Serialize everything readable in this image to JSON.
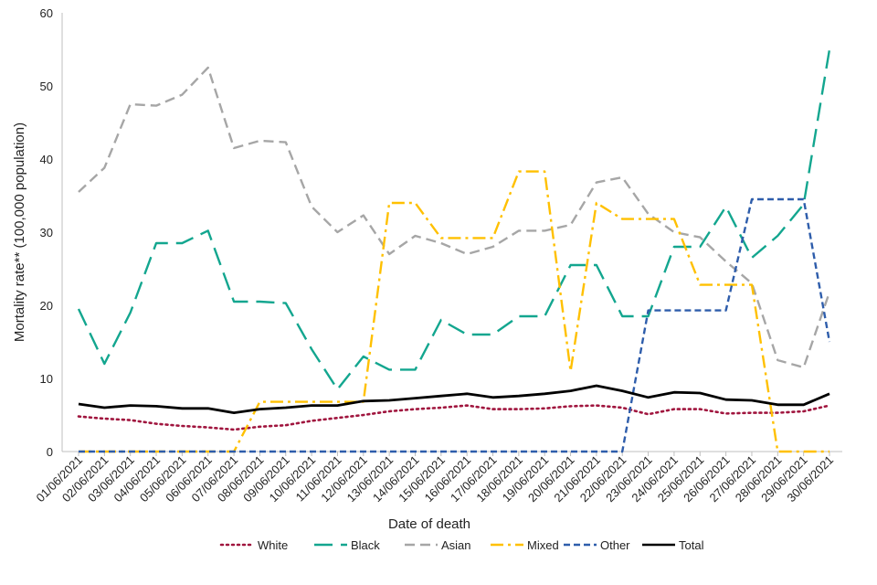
{
  "chart_data": {
    "type": "line",
    "title": "",
    "xlabel": "Date of death",
    "ylabel": "Mortality rate** (100,000 population)",
    "ylim": [
      0,
      60
    ],
    "yticks": [
      0,
      10,
      20,
      30,
      40,
      50,
      60
    ],
    "grid": false,
    "legend_position": "bottom",
    "categories": [
      "01/06/2021",
      "02/06/2021",
      "03/06/2021",
      "04/06/2021",
      "05/06/2021",
      "06/06/2021",
      "07/06/2021",
      "08/06/2021",
      "09/06/2021",
      "10/06/2021",
      "11/06/2021",
      "12/06/2021",
      "13/06/2021",
      "14/06/2021",
      "15/06/2021",
      "16/06/2021",
      "17/06/2021",
      "18/06/2021",
      "19/06/2021",
      "20/06/2021",
      "21/06/2021",
      "22/06/2021",
      "23/06/2021",
      "24/06/2021",
      "25/06/2021",
      "26/06/2021",
      "27/06/2021",
      "28/06/2021",
      "29/06/2021",
      "30/06/2021"
    ],
    "series": [
      {
        "name": "White",
        "color": "#A0153E",
        "dash": "dot",
        "values": [
          4.8,
          4.5,
          4.3,
          3.8,
          3.5,
          3.3,
          3.0,
          3.4,
          3.6,
          4.2,
          4.6,
          5.0,
          5.5,
          5.8,
          6.0,
          6.3,
          5.8,
          5.8,
          5.9,
          6.2,
          6.3,
          6.0,
          5.1,
          5.8,
          5.8,
          5.2,
          5.3,
          5.3,
          5.5,
          6.3
        ]
      },
      {
        "name": "Black",
        "color": "#13A68F",
        "dash": "longdash",
        "values": [
          19.5,
          12.0,
          19.0,
          28.5,
          28.5,
          30.2,
          20.5,
          20.5,
          20.3,
          14.0,
          8.5,
          13.0,
          11.2,
          11.2,
          18.0,
          16.0,
          16.0,
          18.5,
          18.5,
          25.5,
          25.5,
          18.5,
          18.5,
          28.0,
          28.0,
          33.5,
          26.5,
          29.5,
          33.8,
          55.0
        ]
      },
      {
        "name": "Asian",
        "color": "#A6A6A6",
        "dash": "dash",
        "values": [
          35.5,
          38.8,
          47.5,
          47.3,
          48.8,
          52.5,
          41.5,
          42.5,
          42.3,
          33.5,
          30.0,
          32.3,
          27.0,
          29.5,
          28.5,
          27.0,
          28.0,
          30.2,
          30.2,
          31.0,
          36.8,
          37.5,
          32.5,
          30.0,
          29.3,
          26.0,
          23.0,
          12.5,
          11.5,
          21.8
        ]
      },
      {
        "name": "Mixed",
        "color": "#FFC000",
        "dash": "dashdot",
        "values": [
          0,
          0,
          0,
          0,
          0,
          0,
          0,
          6.8,
          6.8,
          6.8,
          6.8,
          6.8,
          34.0,
          34.0,
          29.2,
          29.2,
          29.2,
          38.3,
          38.3,
          11.0,
          34.0,
          31.8,
          31.8,
          31.8,
          22.8,
          22.8,
          22.8,
          0,
          0,
          0
        ]
      },
      {
        "name": "Other",
        "color": "#2E5DAB",
        "dash": "shortdash",
        "values": [
          0,
          0,
          0,
          0,
          0,
          0,
          0,
          0,
          0,
          0,
          0,
          0,
          0,
          0,
          0,
          0,
          0,
          0,
          0,
          0,
          0,
          0,
          19.3,
          19.3,
          19.3,
          19.3,
          34.5,
          34.5,
          34.5,
          15.0
        ]
      },
      {
        "name": "Total",
        "color": "#000000",
        "dash": "solid",
        "values": [
          6.5,
          6.0,
          6.3,
          6.2,
          5.9,
          5.9,
          5.3,
          5.8,
          6.0,
          6.3,
          6.3,
          6.9,
          7.0,
          7.3,
          7.6,
          7.9,
          7.4,
          7.6,
          7.9,
          8.3,
          9.0,
          8.3,
          7.4,
          8.1,
          8.0,
          7.1,
          7.0,
          6.4,
          6.4,
          7.9
        ]
      }
    ]
  }
}
